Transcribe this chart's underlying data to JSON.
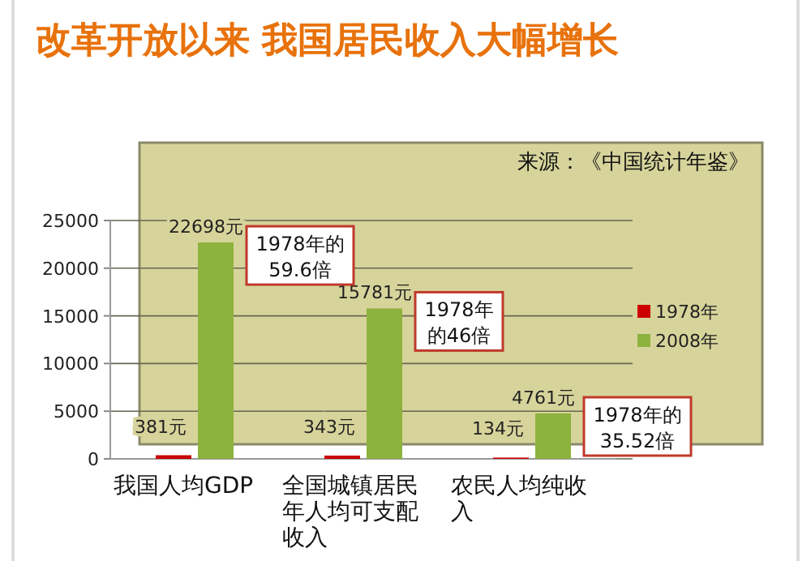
{
  "chart_data": {
    "type": "bar",
    "title": "改革开放以来 我国居民收入大幅增长",
    "categories": [
      "我国人均GDP",
      "全国城镇居民年人均可支配收入",
      "农民人均纯收入"
    ],
    "series": [
      {
        "name": "1978年",
        "color": "#cc0000",
        "values": [
          381,
          343,
          134
        ],
        "value_labels": [
          "381元",
          "343元",
          "134元"
        ]
      },
      {
        "name": "2008年",
        "color": "#8db23e",
        "values": [
          22698,
          15781,
          4761
        ],
        "value_labels": [
          "22698元",
          "15781元",
          "4761元"
        ]
      }
    ],
    "ylim": [
      0,
      25000
    ],
    "yticks": [
      0,
      5000,
      10000,
      15000,
      20000,
      25000
    ],
    "grid": "y",
    "legend": "right",
    "annotations": [
      "来源：《中国统计年鉴》",
      "1978年的59.6倍",
      "1978年的46倍",
      "1978年的35.52倍"
    ]
  }
}
